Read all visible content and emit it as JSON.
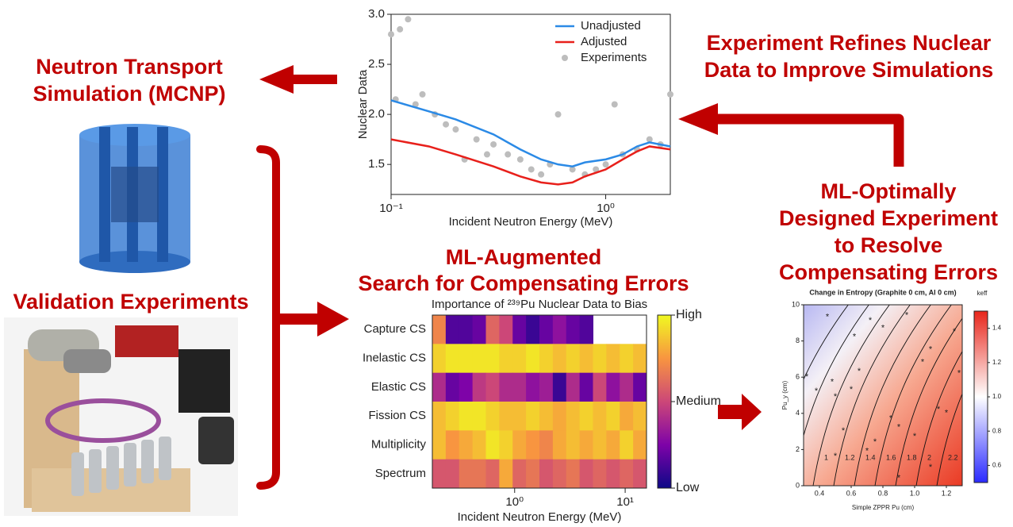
{
  "labels": {
    "neutron_transport": [
      "Neutron Transport",
      "Simulation (MCNP)"
    ],
    "validation": "Validation Experiments",
    "experiment_refines": [
      "Experiment Refines Nuclear",
      "Data to Improve Simulations"
    ],
    "ml_augmented": [
      "ML-Augmented",
      "Search for Compensating Errors"
    ],
    "ml_optimal": [
      "ML-Optimally",
      "Designed Experiment",
      "to Resolve",
      "Compensating Errors"
    ]
  },
  "nuclear_chart": {
    "type": "line",
    "xlabel": "Incident Neutron Energy (MeV)",
    "ylabel": "Nuclear Data",
    "xscale": "log",
    "xlim": [
      0.1,
      2
    ],
    "ylim": [
      1.2,
      3.0
    ],
    "xticks": [
      {
        "value": 0.1,
        "label": "10⁻¹"
      },
      {
        "value": 1,
        "label": "10⁰"
      }
    ],
    "yticks": [
      1.5,
      {
        "value": 2,
        "label": "2.0"
      },
      2.5,
      {
        "value": 3,
        "label": "3.0"
      }
    ],
    "legend": "upper right",
    "series": [
      {
        "name": "Unadjusted",
        "color": "#2b8ae6",
        "kind": "line",
        "x": [
          0.1,
          0.15,
          0.2,
          0.3,
          0.4,
          0.5,
          0.6,
          0.7,
          0.8,
          1.0,
          1.2,
          1.4,
          1.6,
          2
        ],
        "values": [
          2.14,
          2.03,
          1.95,
          1.8,
          1.65,
          1.55,
          1.5,
          1.48,
          1.52,
          1.55,
          1.6,
          1.68,
          1.72,
          1.68
        ]
      },
      {
        "name": "Adjusted",
        "color": "#e8201b",
        "kind": "line",
        "x": [
          0.1,
          0.15,
          0.2,
          0.3,
          0.4,
          0.5,
          0.6,
          0.7,
          0.8,
          1.0,
          1.2,
          1.4,
          1.6,
          2
        ],
        "values": [
          1.75,
          1.68,
          1.6,
          1.48,
          1.38,
          1.32,
          1.3,
          1.32,
          1.38,
          1.45,
          1.55,
          1.63,
          1.68,
          1.65
        ]
      },
      {
        "name": "Experiments",
        "color": "#bdbdbd",
        "kind": "scatter",
        "x": [
          0.1,
          0.105,
          0.11,
          0.12,
          0.13,
          0.14,
          0.16,
          0.18,
          0.2,
          0.22,
          0.25,
          0.28,
          0.3,
          0.35,
          0.4,
          0.45,
          0.5,
          0.55,
          0.6,
          0.7,
          0.8,
          0.9,
          1.0,
          1.1,
          1.2,
          1.4,
          1.6,
          1.8,
          2
        ],
        "values": [
          2.8,
          2.15,
          2.85,
          2.95,
          2.1,
          2.2,
          2.0,
          1.9,
          1.85,
          1.55,
          1.75,
          1.6,
          1.7,
          1.6,
          1.55,
          1.45,
          1.4,
          1.5,
          2.0,
          1.45,
          1.4,
          1.45,
          1.5,
          2.1,
          1.6,
          1.65,
          1.75,
          1.7,
          2.2
        ]
      }
    ]
  },
  "heatmap": {
    "type": "heatmap",
    "title": "Importance of ²³⁹Pu Nuclear Data to Bias",
    "xlabel": "Incident Neutron Energy (MeV)",
    "xscale": "log",
    "xlim": [
      0.18,
      15.6
    ],
    "xticks": [
      {
        "value": 1,
        "label": "10⁰"
      },
      {
        "value": 10,
        "label": "10¹"
      }
    ],
    "rows": [
      "Capture CS",
      "Inelastic CS",
      "Elastic CS",
      "Fission CS",
      "Multiplicity",
      "Spectrum"
    ],
    "values": [
      [
        0.7,
        0.15,
        0.15,
        0.2,
        0.6,
        0.5,
        0.2,
        0.1,
        0.2,
        0.3,
        0.2,
        0.15,
        null,
        null,
        null,
        null
      ],
      [
        0.9,
        0.95,
        0.95,
        0.95,
        0.95,
        0.9,
        0.9,
        0.95,
        0.9,
        0.85,
        0.9,
        0.85,
        0.9,
        0.85,
        0.9,
        0.85
      ],
      [
        0.4,
        0.2,
        0.25,
        0.45,
        0.5,
        0.4,
        0.4,
        0.3,
        0.35,
        0.1,
        0.4,
        0.2,
        0.5,
        0.3,
        0.4,
        0.2
      ],
      [
        0.85,
        0.9,
        0.95,
        0.95,
        0.9,
        0.85,
        0.85,
        0.9,
        0.85,
        0.8,
        0.85,
        0.9,
        0.85,
        0.9,
        0.8,
        0.85
      ],
      [
        0.85,
        0.75,
        0.8,
        0.85,
        0.95,
        0.9,
        0.8,
        0.75,
        0.7,
        0.8,
        0.85,
        0.8,
        0.85,
        0.8,
        0.9,
        0.8
      ],
      [
        0.55,
        0.55,
        0.65,
        0.65,
        0.6,
        0.8,
        0.6,
        0.65,
        0.55,
        0.6,
        0.65,
        0.55,
        0.6,
        0.55,
        0.6,
        0.55
      ]
    ],
    "colormap": "plasma",
    "clim": [
      0,
      1
    ],
    "colorbar_ticks": [
      {
        "value": 1,
        "label": "High"
      },
      {
        "value": 0.5,
        "label": "Medium"
      },
      {
        "value": 0,
        "label": "Low"
      }
    ]
  },
  "entropy": {
    "type": "contour",
    "title": "Change in Entropy (Graphite 0 cm, Al 0 cm)",
    "xlabel": "Simple ZPPR Pu (cm)",
    "ylabel": "Pu_y (cm)",
    "xlim": [
      0.3,
      1.3
    ],
    "ylim": [
      0,
      10
    ],
    "xticks": [
      0.4,
      0.6,
      0.8,
      {
        "value": 1,
        "label": "1.0"
      },
      1.2
    ],
    "yticks": [
      0,
      2,
      4,
      6,
      8,
      10
    ],
    "contour_levels": [
      0.6,
      0.8,
      1,
      1.2,
      1.4,
      1.6,
      1.8,
      2,
      2.2
    ],
    "colorbar_label": "keff",
    "clim": [
      0.5,
      1.5
    ],
    "colorbar_ticks": [
      0.6,
      0.8,
      {
        "value": 1,
        "label": "1.0"
      },
      1.2,
      1.4
    ],
    "points": {
      "x": [
        0.32,
        0.38,
        0.45,
        0.48,
        0.5,
        0.55,
        0.6,
        0.62,
        0.7,
        0.72,
        0.75,
        0.8,
        0.85,
        0.9,
        0.95,
        1.0,
        1.05,
        1.1,
        1.15,
        1.2,
        1.25,
        1.28,
        0.5,
        0.65,
        0.9,
        1.1
      ],
      "y": [
        6.1,
        5.3,
        9.4,
        5.8,
        5.0,
        3.1,
        5.4,
        8.3,
        2.0,
        9.2,
        2.5,
        8.8,
        3.8,
        0.5,
        9.5,
        2.8,
        6.9,
        1.1,
        4.3,
        4.1,
        8.6,
        6.3,
        1.7,
        6.4,
        3.3,
        7.6
      ]
    }
  }
}
